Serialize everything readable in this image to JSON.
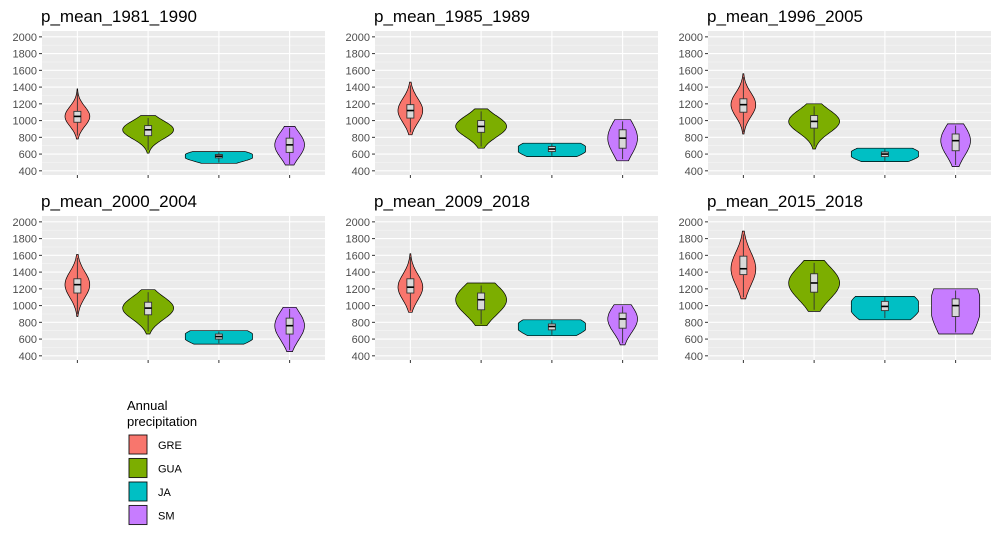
{
  "chart_data": {
    "type": "violin",
    "y_ticks": [
      400,
      600,
      800,
      1000,
      1200,
      1400,
      1600,
      1800,
      2000
    ],
    "ylim": [
      350,
      2070
    ],
    "categories": [
      "GRE",
      "GUA",
      "JA",
      "SM"
    ],
    "grid": true,
    "legend": {
      "title_lines": [
        "Annual",
        "precipitation"
      ],
      "placement": "bottom-left",
      "entries": [
        {
          "label": "GRE",
          "color": "#F8766D"
        },
        {
          "label": "GUA",
          "color": "#7CAE00"
        },
        {
          "label": "JA",
          "color": "#00BFC4"
        },
        {
          "label": "SM",
          "color": "#C77CFF"
        }
      ]
    },
    "panels": [
      {
        "title": "p_mean_1981_1990",
        "series": [
          {
            "name": "GRE",
            "min": 780,
            "max": 1380,
            "q1": 980,
            "median": 1050,
            "q3": 1110,
            "lo": 820,
            "hi": 1340,
            "maxw": 0.35
          },
          {
            "name": "GUA",
            "min": 610,
            "max": 1060,
            "q1": 820,
            "median": 890,
            "q3": 940,
            "lo": 650,
            "hi": 1030,
            "maxw": 0.72
          },
          {
            "name": "JA",
            "min": 490,
            "max": 630,
            "q1": 555,
            "median": 575,
            "q3": 595,
            "lo": 500,
            "hi": 620,
            "maxw": 0.95
          },
          {
            "name": "SM",
            "min": 470,
            "max": 930,
            "q1": 620,
            "median": 710,
            "q3": 790,
            "lo": 480,
            "hi": 910,
            "maxw": 0.42
          }
        ]
      },
      {
        "title": "p_mean_1985_1989",
        "series": [
          {
            "name": "GRE",
            "min": 830,
            "max": 1460,
            "q1": 1030,
            "median": 1120,
            "q3": 1190,
            "lo": 860,
            "hi": 1420,
            "maxw": 0.35
          },
          {
            "name": "GUA",
            "min": 670,
            "max": 1140,
            "q1": 860,
            "median": 930,
            "q3": 1000,
            "lo": 690,
            "hi": 1110,
            "maxw": 0.72
          },
          {
            "name": "JA",
            "min": 570,
            "max": 730,
            "q1": 630,
            "median": 660,
            "q3": 690,
            "lo": 580,
            "hi": 720,
            "maxw": 0.95
          },
          {
            "name": "SM",
            "min": 520,
            "max": 1010,
            "q1": 670,
            "median": 790,
            "q3": 890,
            "lo": 540,
            "hi": 990,
            "maxw": 0.42
          }
        ]
      },
      {
        "title": "p_mean_1996_2005",
        "series": [
          {
            "name": "GRE",
            "min": 840,
            "max": 1560,
            "q1": 1100,
            "median": 1190,
            "q3": 1260,
            "lo": 860,
            "hi": 1520,
            "maxw": 0.35
          },
          {
            "name": "GUA",
            "min": 660,
            "max": 1200,
            "q1": 910,
            "median": 990,
            "q3": 1060,
            "lo": 690,
            "hi": 1170,
            "maxw": 0.72
          },
          {
            "name": "JA",
            "min": 510,
            "max": 670,
            "q1": 570,
            "median": 600,
            "q3": 625,
            "lo": 520,
            "hi": 660,
            "maxw": 0.95
          },
          {
            "name": "SM",
            "min": 450,
            "max": 960,
            "q1": 640,
            "median": 760,
            "q3": 840,
            "lo": 470,
            "hi": 940,
            "maxw": 0.42
          }
        ]
      },
      {
        "title": "p_mean_2000_2004",
        "series": [
          {
            "name": "GRE",
            "min": 870,
            "max": 1610,
            "q1": 1150,
            "median": 1250,
            "q3": 1320,
            "lo": 900,
            "hi": 1570,
            "maxw": 0.35
          },
          {
            "name": "GUA",
            "min": 660,
            "max": 1190,
            "q1": 890,
            "median": 970,
            "q3": 1040,
            "lo": 690,
            "hi": 1160,
            "maxw": 0.72
          },
          {
            "name": "JA",
            "min": 540,
            "max": 700,
            "q1": 600,
            "median": 630,
            "q3": 660,
            "lo": 550,
            "hi": 690,
            "maxw": 0.95
          },
          {
            "name": "SM",
            "min": 450,
            "max": 980,
            "q1": 660,
            "median": 760,
            "q3": 850,
            "lo": 470,
            "hi": 960,
            "maxw": 0.42
          }
        ]
      },
      {
        "title": "p_mean_2009_2018",
        "series": [
          {
            "name": "GRE",
            "min": 920,
            "max": 1620,
            "q1": 1150,
            "median": 1220,
            "q3": 1320,
            "lo": 940,
            "hi": 1580,
            "maxw": 0.35
          },
          {
            "name": "GUA",
            "min": 760,
            "max": 1270,
            "q1": 950,
            "median": 1070,
            "q3": 1150,
            "lo": 780,
            "hi": 1240,
            "maxw": 0.72
          },
          {
            "name": "JA",
            "min": 640,
            "max": 830,
            "q1": 710,
            "median": 750,
            "q3": 780,
            "lo": 650,
            "hi": 820,
            "maxw": 0.95
          },
          {
            "name": "SM",
            "min": 530,
            "max": 1010,
            "q1": 730,
            "median": 840,
            "q3": 910,
            "lo": 550,
            "hi": 990,
            "maxw": 0.42
          }
        ]
      },
      {
        "title": "p_mean_2015_2018",
        "series": [
          {
            "name": "GRE",
            "min": 1080,
            "max": 1890,
            "q1": 1370,
            "median": 1440,
            "q3": 1590,
            "lo": 1100,
            "hi": 1850,
            "maxw": 0.35
          },
          {
            "name": "GUA",
            "min": 930,
            "max": 1540,
            "q1": 1160,
            "median": 1270,
            "q3": 1380,
            "lo": 950,
            "hi": 1510,
            "maxw": 0.72
          },
          {
            "name": "JA",
            "min": 830,
            "max": 1110,
            "q1": 940,
            "median": 990,
            "q3": 1050,
            "lo": 850,
            "hi": 1100,
            "maxw": 0.95
          },
          {
            "name": "SM",
            "min": 660,
            "max": 1200,
            "q1": 870,
            "median": 1000,
            "q3": 1080,
            "lo": 680,
            "hi": 1180,
            "maxw": 0.68
          }
        ]
      }
    ]
  }
}
